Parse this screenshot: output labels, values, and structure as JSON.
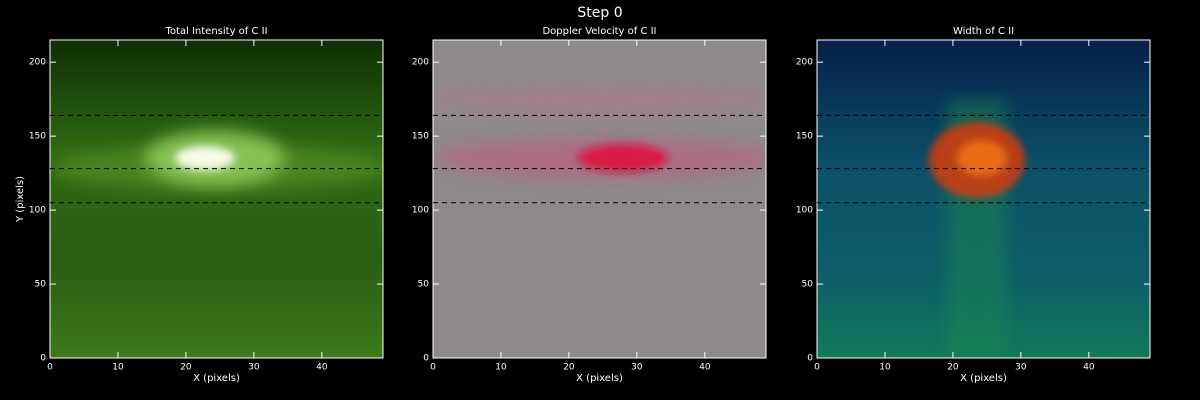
{
  "title": "Step 0",
  "chart_data": [
    {
      "type": "heatmap",
      "title": "Total Intensity of C II",
      "xlabel": "X (pixels)",
      "ylabel": "Y (pixels)",
      "xlim": [
        0,
        49
      ],
      "ylim": [
        0,
        215
      ],
      "xticks": [
        0,
        10,
        20,
        30,
        40
      ],
      "yticks": [
        0,
        50,
        100,
        150,
        200
      ],
      "hlines": [
        164,
        128,
        105
      ]
    },
    {
      "type": "heatmap",
      "title": "Doppler Velocity of C II",
      "xlabel": "X (pixels)",
      "xlim": [
        0,
        49
      ],
      "ylim": [
        0,
        215
      ],
      "xticks": [
        0,
        10,
        20,
        30,
        40
      ],
      "yticks": [
        0,
        50,
        100,
        150,
        200
      ],
      "hlines": [
        164,
        128,
        105
      ]
    },
    {
      "type": "heatmap",
      "title": "Width of C II",
      "xlabel": "X (pixels)",
      "xlim": [
        0,
        49
      ],
      "ylim": [
        0,
        215
      ],
      "xticks": [
        0,
        10,
        20,
        30,
        40
      ],
      "yticks": [
        0,
        50,
        100,
        150,
        200
      ],
      "hlines": [
        164,
        128,
        105
      ]
    }
  ]
}
